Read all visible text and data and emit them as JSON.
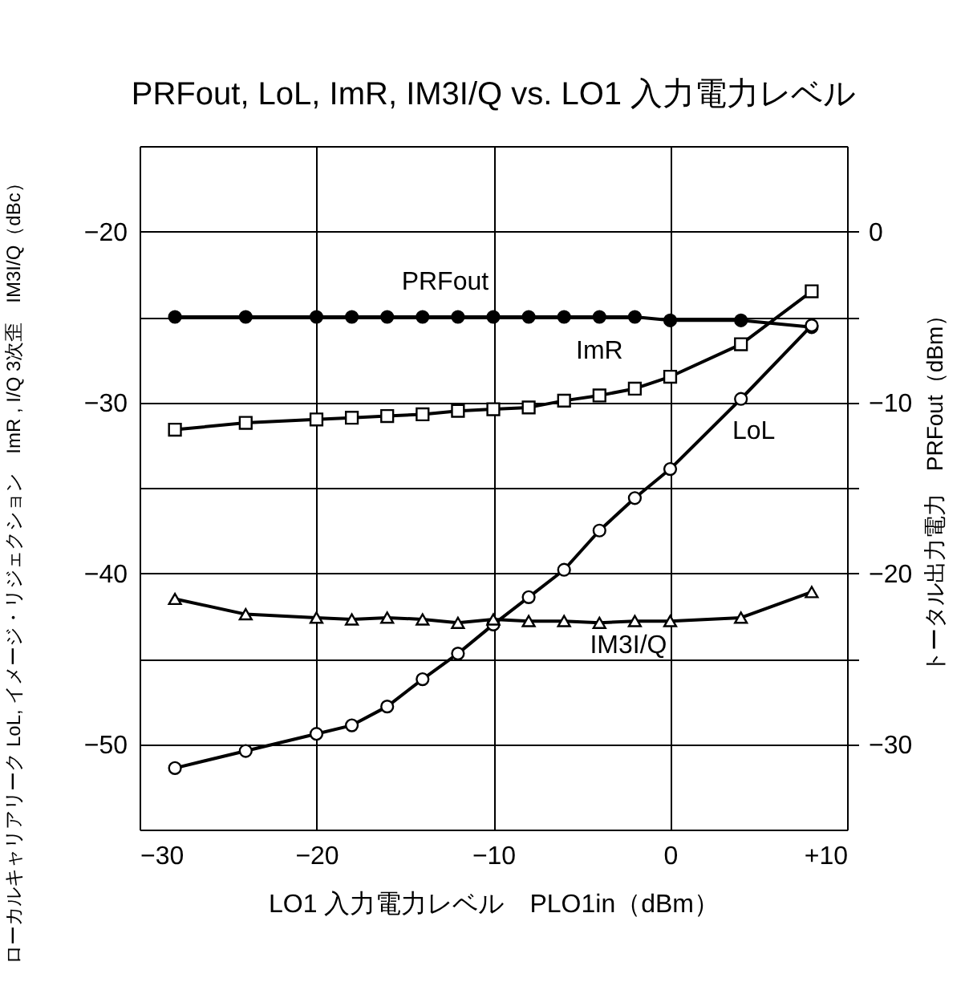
{
  "chart_data": {
    "type": "line",
    "title": "PRFout, LoL, ImR, IM3I/Q vs. LO1 入力電力レベル",
    "xlabel": "LO1 入力電力レベル　PLO1in（dBm）",
    "ylabel": "ローカルキャリアリーク LoL, イメージ・リジェクション　ImR , I/Q 3次歪　IM3I/Q（dBc）",
    "y2label": "トータル出力電力　PRFout（dBm）",
    "x": [
      -28,
      -24,
      -20,
      -18,
      -16,
      -14,
      -12,
      -10,
      -8,
      -6,
      -4,
      -2,
      0,
      4,
      8
    ],
    "series": [
      {
        "name": "PRFout",
        "color": "#000000",
        "axis": "y2",
        "marker": "circle",
        "values": [
          -5,
          -5,
          -5,
          -5,
          -5,
          -5,
          -5,
          -5,
          -5,
          -5,
          -5,
          -5,
          -5.2,
          -5.2,
          -5.6
        ]
      },
      {
        "name": "ImR",
        "color": "#000000",
        "marker": "square",
        "values": [
          -31.6,
          -31.2,
          -31.0,
          -30.9,
          -30.8,
          -30.7,
          -30.5,
          -30.4,
          -30.3,
          -29.9,
          -29.6,
          -29.2,
          -28.5,
          -26.6,
          -23.5
        ]
      },
      {
        "name": "LoL",
        "color": "#000000",
        "marker": "circle",
        "values": [
          -51.4,
          -50.4,
          -49.4,
          -48.9,
          -47.8,
          -46.2,
          -44.7,
          -43.0,
          -41.4,
          -39.8,
          -37.5,
          -35.6,
          -33.9,
          -29.8,
          -25.5
        ]
      },
      {
        "name": "IM3I/Q",
        "color": "#000000",
        "marker": "triangle",
        "values": [
          -41.5,
          -42.4,
          -42.6,
          -42.7,
          -42.6,
          -42.7,
          -42.9,
          -42.7,
          -42.8,
          -42.8,
          -42.9,
          -42.8,
          -42.8,
          -42.6,
          -41.1
        ]
      }
    ],
    "xlim": [
      -30,
      10
    ],
    "xticks": [
      -30,
      -20,
      -10,
      0,
      {
        "value": 10,
        "label": "+10"
      }
    ],
    "ylim": [
      -55,
      -15
    ],
    "yticks": [
      {
        "value": -55,
        "label": null
      },
      -50,
      {
        "value": -45,
        "label": null
      },
      -40,
      {
        "value": -35,
        "label": null
      },
      -30,
      {
        "value": -25,
        "label": null
      },
      -20,
      {
        "value": -15,
        "label": null
      }
    ],
    "y2lim": [
      -35,
      5
    ],
    "y2ticks": [
      -30,
      {
        "value": -25,
        "label": null
      },
      -20,
      {
        "value": -15,
        "label": null
      },
      -10,
      {
        "value": -5,
        "label": null
      },
      0
    ],
    "grid": true,
    "line_style": "solid"
  }
}
